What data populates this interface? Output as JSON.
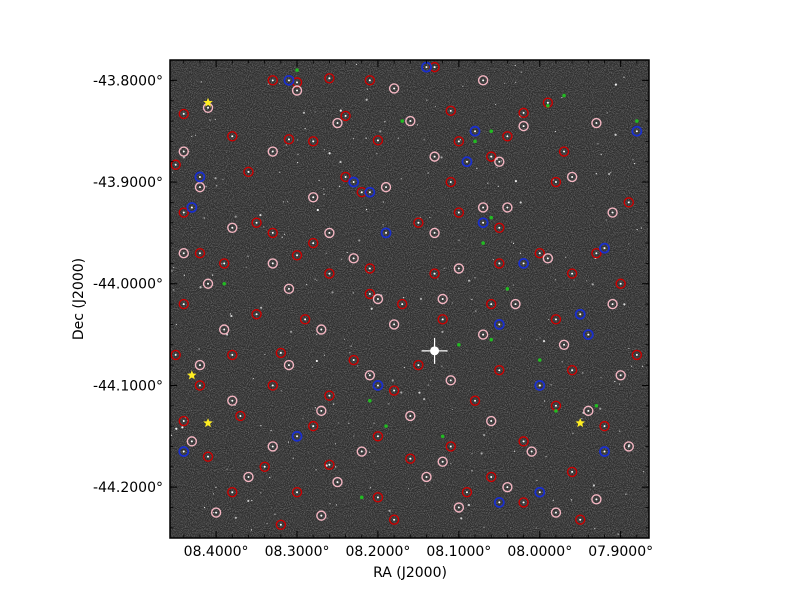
{
  "chart_data": {
    "type": "scatter",
    "title": "",
    "xlabel": "RA (J2000)",
    "ylabel": "Dec (J2000)",
    "x_tick_labels": [
      "08.4000°",
      "08.3000°",
      "08.2000°",
      "08.1000°",
      "08.0000°",
      "07.9000°"
    ],
    "x_tick_values": [
      8.4,
      8.3,
      8.2,
      8.1,
      8.0,
      7.9
    ],
    "y_tick_labels": [
      "-43.8000°",
      "-43.9000°",
      "-44.0000°",
      "-44.1000°",
      "-44.2000°"
    ],
    "y_tick_values": [
      -43.8,
      -43.9,
      -44.0,
      -44.1,
      -44.2
    ],
    "xlim": [
      8.457,
      7.865
    ],
    "ylim": [
      -44.25,
      -43.78
    ],
    "background": "grayscale sky image with stars",
    "colors": {
      "red_circle": "#cc0000",
      "pink_circle": "#f4b6c2",
      "blue_circle": "#1a2fcc",
      "green_marker": "#22bb22",
      "star_marker": "#ffee22",
      "bright_star": "#ffffff"
    },
    "series": [
      {
        "marker": "red_circle",
        "points": [
          [
            8.33,
            -43.8
          ],
          [
            8.3,
            -43.802
          ],
          [
            8.26,
            -43.798
          ],
          [
            8.21,
            -43.8
          ],
          [
            8.13,
            -43.787
          ],
          [
            8.44,
            -43.833
          ],
          [
            8.24,
            -43.835
          ],
          [
            8.11,
            -43.83
          ],
          [
            8.02,
            -43.832
          ],
          [
            7.99,
            -43.822
          ],
          [
            8.38,
            -43.855
          ],
          [
            8.31,
            -43.858
          ],
          [
            8.28,
            -43.86
          ],
          [
            8.2,
            -43.859
          ],
          [
            8.1,
            -43.86
          ],
          [
            8.04,
            -43.855
          ],
          [
            7.97,
            -43.87
          ],
          [
            8.45,
            -43.883
          ],
          [
            8.36,
            -43.89
          ],
          [
            8.24,
            -43.895
          ],
          [
            8.22,
            -43.91
          ],
          [
            8.11,
            -43.9
          ],
          [
            8.06,
            -43.875
          ],
          [
            7.98,
            -43.9
          ],
          [
            7.89,
            -43.92
          ],
          [
            8.44,
            -43.93
          ],
          [
            8.35,
            -43.94
          ],
          [
            8.33,
            -43.95
          ],
          [
            8.28,
            -43.96
          ],
          [
            8.15,
            -43.94
          ],
          [
            8.1,
            -43.93
          ],
          [
            8.05,
            -43.945
          ],
          [
            8.0,
            -43.97
          ],
          [
            7.93,
            -43.97
          ],
          [
            8.42,
            -43.97
          ],
          [
            8.39,
            -43.98
          ],
          [
            8.3,
            -43.972
          ],
          [
            8.26,
            -43.99
          ],
          [
            8.21,
            -43.985
          ],
          [
            8.13,
            -43.99
          ],
          [
            8.05,
            -43.98
          ],
          [
            7.96,
            -43.99
          ],
          [
            7.9,
            -44.0
          ],
          [
            8.44,
            -44.02
          ],
          [
            8.35,
            -44.03
          ],
          [
            8.29,
            -44.035
          ],
          [
            8.21,
            -44.01
          ],
          [
            8.17,
            -44.02
          ],
          [
            8.12,
            -44.035
          ],
          [
            8.06,
            -44.02
          ],
          [
            7.98,
            -44.035
          ],
          [
            8.45,
            -44.07
          ],
          [
            8.38,
            -44.07
          ],
          [
            8.32,
            -44.068
          ],
          [
            8.23,
            -44.075
          ],
          [
            8.15,
            -44.08
          ],
          [
            8.05,
            -44.085
          ],
          [
            7.96,
            -44.085
          ],
          [
            7.88,
            -44.07
          ],
          [
            8.42,
            -44.1
          ],
          [
            8.33,
            -44.1
          ],
          [
            8.26,
            -44.11
          ],
          [
            8.18,
            -44.105
          ],
          [
            8.08,
            -44.115
          ],
          [
            7.98,
            -44.12
          ],
          [
            8.44,
            -44.135
          ],
          [
            8.37,
            -44.13
          ],
          [
            8.28,
            -44.14
          ],
          [
            8.2,
            -44.15
          ],
          [
            8.11,
            -44.16
          ],
          [
            8.02,
            -44.155
          ],
          [
            7.92,
            -44.14
          ],
          [
            8.41,
            -44.17
          ],
          [
            8.34,
            -44.18
          ],
          [
            8.26,
            -44.178
          ],
          [
            8.16,
            -44.172
          ],
          [
            8.06,
            -44.19
          ],
          [
            7.96,
            -44.185
          ],
          [
            8.38,
            -44.205
          ],
          [
            8.3,
            -44.205
          ],
          [
            8.2,
            -44.21
          ],
          [
            8.09,
            -44.205
          ],
          [
            8.02,
            -44.215
          ],
          [
            7.95,
            -44.232
          ],
          [
            8.32,
            -44.237
          ],
          [
            8.18,
            -44.232
          ]
        ]
      },
      {
        "marker": "pink_circle",
        "points": [
          [
            8.3,
            -43.81
          ],
          [
            8.18,
            -43.808
          ],
          [
            8.07,
            -43.8
          ],
          [
            8.41,
            -43.827
          ],
          [
            8.25,
            -43.842
          ],
          [
            8.16,
            -43.84
          ],
          [
            8.02,
            -43.845
          ],
          [
            7.93,
            -43.842
          ],
          [
            8.44,
            -43.87
          ],
          [
            8.33,
            -43.87
          ],
          [
            8.13,
            -43.875
          ],
          [
            8.05,
            -43.88
          ],
          [
            7.96,
            -43.895
          ],
          [
            8.42,
            -43.905
          ],
          [
            8.28,
            -43.915
          ],
          [
            8.19,
            -43.905
          ],
          [
            8.07,
            -43.925
          ],
          [
            7.91,
            -43.93
          ],
          [
            8.38,
            -43.945
          ],
          [
            8.26,
            -43.95
          ],
          [
            8.13,
            -43.95
          ],
          [
            8.04,
            -43.925
          ],
          [
            8.44,
            -43.97
          ],
          [
            8.33,
            -43.98
          ],
          [
            8.23,
            -43.975
          ],
          [
            8.1,
            -43.985
          ],
          [
            7.99,
            -43.975
          ],
          [
            8.41,
            -44.0
          ],
          [
            8.31,
            -44.005
          ],
          [
            8.2,
            -44.015
          ],
          [
            8.12,
            -44.015
          ],
          [
            8.03,
            -44.02
          ],
          [
            7.91,
            -44.02
          ],
          [
            8.39,
            -44.045
          ],
          [
            8.27,
            -44.045
          ],
          [
            8.18,
            -44.04
          ],
          [
            8.07,
            -44.05
          ],
          [
            7.97,
            -44.06
          ],
          [
            8.42,
            -44.08
          ],
          [
            8.31,
            -44.08
          ],
          [
            8.21,
            -44.09
          ],
          [
            8.11,
            -44.095
          ],
          [
            8.0,
            -44.1
          ],
          [
            7.9,
            -44.09
          ],
          [
            8.38,
            -44.115
          ],
          [
            8.27,
            -44.125
          ],
          [
            8.16,
            -44.13
          ],
          [
            8.06,
            -44.135
          ],
          [
            7.94,
            -44.125
          ],
          [
            8.43,
            -44.155
          ],
          [
            8.33,
            -44.16
          ],
          [
            8.22,
            -44.165
          ],
          [
            8.12,
            -44.175
          ],
          [
            8.01,
            -44.165
          ],
          [
            7.89,
            -44.16
          ],
          [
            8.36,
            -44.19
          ],
          [
            8.25,
            -44.195
          ],
          [
            8.14,
            -44.19
          ],
          [
            8.04,
            -44.2
          ],
          [
            7.93,
            -44.212
          ],
          [
            8.4,
            -44.225
          ],
          [
            8.27,
            -44.228
          ],
          [
            8.1,
            -44.22
          ],
          [
            7.98,
            -44.225
          ]
        ]
      },
      {
        "marker": "blue_circle",
        "points": [
          [
            8.31,
            -43.8
          ],
          [
            8.14,
            -43.787
          ],
          [
            8.08,
            -43.85
          ],
          [
            7.88,
            -43.85
          ],
          [
            8.09,
            -43.88
          ],
          [
            8.42,
            -43.895
          ],
          [
            8.23,
            -43.9
          ],
          [
            8.21,
            -43.91
          ],
          [
            8.43,
            -43.925
          ],
          [
            8.19,
            -43.95
          ],
          [
            8.07,
            -43.94
          ],
          [
            7.92,
            -43.965
          ],
          [
            8.02,
            -43.98
          ],
          [
            7.95,
            -44.03
          ],
          [
            8.05,
            -44.04
          ],
          [
            7.94,
            -44.05
          ],
          [
            8.2,
            -44.1
          ],
          [
            8.0,
            -44.1
          ],
          [
            8.44,
            -44.165
          ],
          [
            8.3,
            -44.15
          ],
          [
            7.92,
            -44.165
          ],
          [
            8.05,
            -44.215
          ],
          [
            8.0,
            -44.205
          ]
        ]
      },
      {
        "marker": "green_marker",
        "points": [
          [
            8.3,
            -43.79
          ],
          [
            7.99,
            -43.825
          ],
          [
            7.97,
            -43.815
          ],
          [
            8.17,
            -43.84
          ],
          [
            8.06,
            -43.85
          ],
          [
            8.08,
            -43.86
          ],
          [
            7.88,
            -43.84
          ],
          [
            8.06,
            -43.935
          ],
          [
            8.07,
            -43.96
          ],
          [
            8.39,
            -44.0
          ],
          [
            8.04,
            -44.005
          ],
          [
            8.1,
            -44.06
          ],
          [
            8.06,
            -44.055
          ],
          [
            8.19,
            -44.14
          ],
          [
            8.21,
            -44.115
          ],
          [
            8.22,
            -44.21
          ],
          [
            8.12,
            -44.15
          ],
          [
            7.98,
            -44.125
          ],
          [
            7.93,
            -44.12
          ],
          [
            8.0,
            -44.075
          ]
        ]
      },
      {
        "marker": "star_marker",
        "points": [
          [
            8.41,
            -43.822
          ],
          [
            8.43,
            -44.09
          ],
          [
            8.41,
            -44.137
          ],
          [
            7.95,
            -44.137
          ]
        ]
      },
      {
        "marker": "bright_star",
        "points": [
          [
            8.13,
            -44.066
          ]
        ]
      }
    ]
  }
}
